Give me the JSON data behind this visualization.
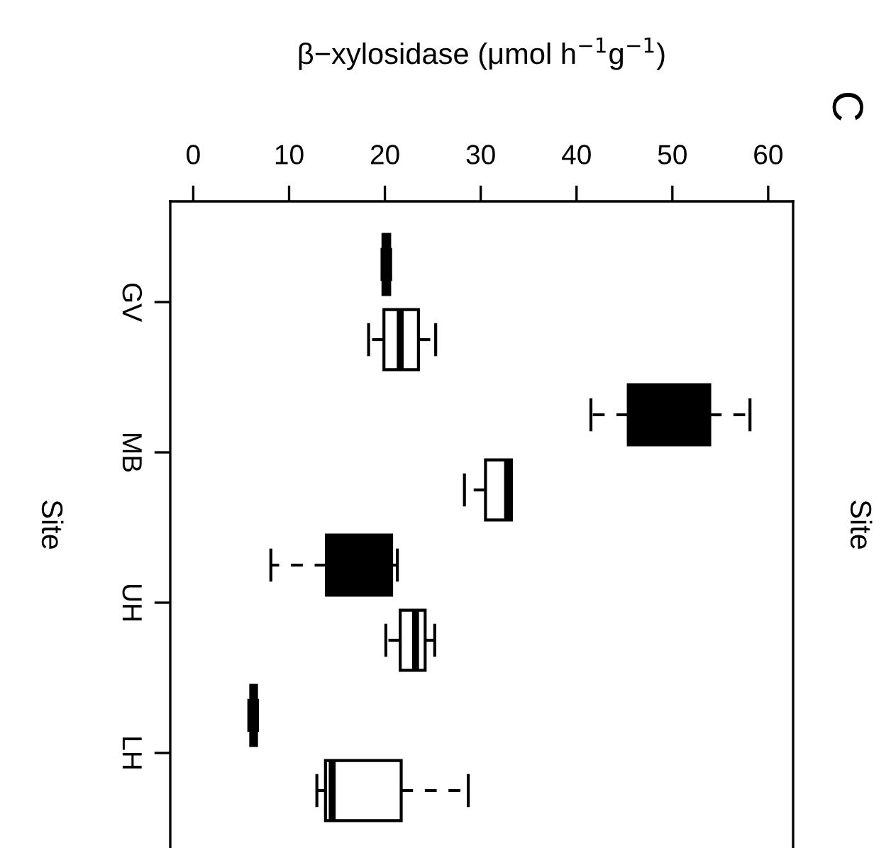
{
  "chart_data": {
    "type": "box",
    "orientation": "horizontal",
    "xlabel": "β−xylosidase (μmol h$^{−1}$g$^{−1}$)",
    "ylabel": "Site",
    "y2label": "Site",
    "annotations": [
      "C"
    ],
    "categories": [
      "GV",
      "MB",
      "UH",
      "LH"
    ],
    "series": [
      {
        "color": "#000000",
        "boxes": [
          {
            "low": 19.7,
            "q1": 19.8,
            "median": 20.1,
            "q3": 20.5,
            "high": 20.6
          },
          {
            "low": 41.5,
            "q1": 45.4,
            "median": 49.5,
            "q3": 53.9,
            "high": 58.1
          },
          {
            "low": 8.1,
            "q1": 13.9,
            "median": 17.5,
            "q3": 20.7,
            "high": 21.3
          },
          {
            "low": 5.8,
            "q1": 6.0,
            "median": 6.3,
            "q3": 6.6,
            "high": 6.7
          }
        ]
      },
      {
        "color": "#ffffff",
        "boxes": [
          {
            "low": 18.3,
            "q1": 19.9,
            "median": 21.6,
            "q3": 23.5,
            "high": 25.3
          },
          {
            "low": 28.3,
            "q1": 30.5,
            "median": 32.8,
            "q3": 33.2,
            "high": 33.2
          },
          {
            "low": 20.1,
            "q1": 21.6,
            "median": 23.2,
            "q3": 24.2,
            "high": 25.2
          },
          {
            "low": 12.9,
            "q1": 13.8,
            "median": 14.5,
            "q3": 21.7,
            "high": 28.7
          }
        ]
      }
    ],
    "xlim": [
      -2.4,
      62.6
    ],
    "xticks": [
      0,
      10,
      20,
      30,
      40,
      50,
      60
    ],
    "grid": false,
    "legend": false
  }
}
